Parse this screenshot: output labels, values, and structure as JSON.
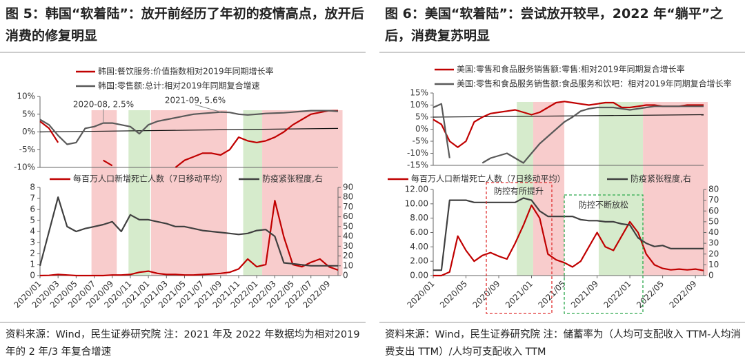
{
  "figures": [
    {
      "title": "图 5：韩国“软着陆”：放开前经历了年初的疫情高点，放开后消费的修复明显",
      "source": "资料来源：Wind，民生证券研究院 注：2021 年及 2022 年数据均为相对2019 年的 2 年/3 年复合增速"
    },
    {
      "title": "图 6：美国“软着陆”：尝试放开较早，2022 年“躺平”之后，消费复苏明显",
      "source": "资料来源：Wind，民生证券研究院 注：储蓄率为（人均可支配收入 TTM-人均消费支出 TTM）/人均可支配收入 TTM"
    }
  ],
  "chart_data": [
    {
      "type": "line",
      "ylim": [
        -10,
        10
      ],
      "yticks": [
        {
          "value": -10,
          "label": "-10%"
        },
        {
          "value": -5,
          "label": "-5%"
        },
        {
          "value": 0,
          "label": "0%"
        },
        {
          "value": 5,
          "label": "5%"
        },
        {
          "value": 10,
          "label": "10%"
        }
      ],
      "annotations": [
        {
          "text": "2020-08, 2.5%"
        },
        {
          "text": "2021-09, 5.6%"
        }
      ],
      "series": [
        {
          "name": "韩国:餐饮服务:价值指数相对2019年同期增长率",
          "color": "#c00000",
          "values": [
            3,
            1,
            -3,
            null,
            null,
            null,
            null,
            -8,
            -9.5,
            null,
            null,
            null,
            null,
            null,
            null,
            -10,
            -8,
            -7,
            -6,
            -6,
            -6.5,
            -5,
            -1.5,
            -2.5,
            -3,
            -2.5,
            -1.5,
            0,
            2,
            3.5,
            5,
            5.5,
            6,
            6
          ]
        },
        {
          "name": "韩国:零售额:总计:相对2019年同期复合增速",
          "color": "#595959",
          "values": [
            3.5,
            2,
            -1,
            -3.5,
            -3,
            1,
            1.5,
            2.5,
            2.5,
            2,
            1.5,
            -0.5,
            2,
            3,
            3.5,
            4,
            4.5,
            5,
            5.2,
            5.4,
            5.6,
            5.5,
            5,
            4.8,
            5,
            5.2,
            5.3,
            5.4,
            5.6,
            5.8,
            6,
            6,
            6,
            5.8
          ]
        }
      ]
    },
    {
      "type": "line",
      "ylim": [
        0,
        8
      ],
      "yticks": [
        0,
        1,
        2,
        3,
        4,
        5,
        6,
        7,
        8
      ],
      "y2lim": [
        0,
        90
      ],
      "y2ticks": [
        0,
        10,
        20,
        30,
        40,
        50,
        60,
        70,
        80,
        90
      ],
      "categories": [
        "2020/01",
        null,
        "2020/03",
        null,
        "2020/05",
        null,
        "2020/07",
        null,
        "2020/09",
        null,
        "2020/11",
        null,
        "2021/01",
        null,
        "2021/03",
        null,
        "2021/05",
        null,
        "2021/07",
        null,
        "2021/09",
        null,
        "2021/11",
        null,
        "2022/01",
        null,
        "2022/03",
        null,
        "2022/05",
        null,
        "2022/07",
        null,
        "2022/09",
        null
      ],
      "series": [
        {
          "name": "每百万人口新增死亡人数（7日移动平均）",
          "color": "#c00000",
          "values": [
            0,
            0.02,
            0.1,
            0.05,
            0,
            0,
            0,
            0,
            0.05,
            0.05,
            0.1,
            0.3,
            0.4,
            0.2,
            0.1,
            0.1,
            0.05,
            0.05,
            0.1,
            0.15,
            0.2,
            0.3,
            0.6,
            1.5,
            0.8,
            1,
            6.8,
            3.5,
            1,
            0.8,
            1.2,
            1.5,
            0.8,
            0.5
          ]
        },
        {
          "name": "防疫紧张程度,右",
          "color": "#404040",
          "axis": "y2",
          "values": [
            10,
            45,
            80,
            50,
            45,
            48,
            50,
            52,
            55,
            45,
            62,
            57,
            57,
            55,
            53,
            50,
            50,
            48,
            46,
            45,
            44,
            43,
            42,
            43,
            46,
            47,
            40,
            13,
            12,
            11,
            10,
            10,
            10,
            10
          ]
        }
      ]
    },
    {
      "type": "line",
      "ylim": [
        -15,
        15
      ],
      "yticks": [
        {
          "value": -15,
          "label": "-15%"
        },
        {
          "value": -10,
          "label": "-10%"
        },
        {
          "value": -5,
          "label": "-5%"
        },
        {
          "value": 0,
          "label": "0%"
        },
        {
          "value": 5,
          "label": "5%"
        },
        {
          "value": 10,
          "label": "10%"
        },
        {
          "value": 15,
          "label": "15%"
        }
      ],
      "series": [
        {
          "name": "美国:零售和食品服务销售额:零售:相对2019年同期复合增长率",
          "color": "#c00000",
          "values": [
            4,
            2,
            -5,
            -7.5,
            -5,
            3,
            5,
            6.5,
            7,
            7.5,
            8,
            7,
            6,
            7,
            9,
            11,
            11.5,
            11,
            10.5,
            10,
            10.5,
            11,
            11,
            9,
            9,
            9.5,
            10,
            10,
            9.5,
            9.5,
            9.5,
            10,
            10,
            10
          ]
        },
        {
          "name": "美国:零售和食品服务销售额:食品服务和饮吧：相对2019年同期复合增长率",
          "color": "#595959",
          "values": [
            9,
            10.5,
            -12,
            null,
            null,
            null,
            -14,
            -12,
            -11,
            -10,
            -12,
            -14,
            -10,
            -6,
            -3,
            0,
            3,
            5,
            7.5,
            8.5,
            9,
            9,
            9,
            8.5,
            8,
            8.5,
            9,
            9.5,
            9.5,
            9.5,
            9.5,
            9.5,
            9.5,
            9.5
          ]
        }
      ]
    },
    {
      "type": "line",
      "ylim": [
        0,
        12
      ],
      "yticks": [
        {
          "value": 0,
          "label": "0.00"
        },
        {
          "value": 2,
          "label": "2.00"
        },
        {
          "value": 4,
          "label": "4.00"
        },
        {
          "value": 6,
          "label": "6.00"
        },
        {
          "value": 8,
          "label": "8.00"
        },
        {
          "value": 10,
          "label": "10.00"
        },
        {
          "value": 12,
          "label": "12.00"
        }
      ],
      "y2lim": [
        0,
        80
      ],
      "y2ticks": [
        0,
        10,
        20,
        30,
        40,
        50,
        60,
        70,
        80
      ],
      "categories": [
        "2020/01",
        null,
        null,
        null,
        "2020/05",
        null,
        null,
        null,
        "2020/09",
        null,
        null,
        null,
        "2021/01",
        null,
        null,
        null,
        "2021/05",
        null,
        null,
        null,
        "2021/09",
        null,
        null,
        null,
        "2022/01",
        null,
        null,
        null,
        "2022/05",
        null,
        null,
        null,
        "2022/09",
        null
      ],
      "annotations": [
        {
          "text": "防控有所提升",
          "color": "#e03030"
        },
        {
          "text": "防控不断放松",
          "color": "#2aa84a"
        }
      ],
      "series": [
        {
          "name": "每百万人口新增死亡人数（7日移动平均）",
          "color": "#c00000",
          "values": [
            0,
            0,
            0.5,
            5.5,
            3.5,
            2,
            2.8,
            3.2,
            2.7,
            2.3,
            4.5,
            7,
            9.8,
            8,
            3,
            2.2,
            1.8,
            1.2,
            2,
            4,
            6,
            4,
            3.5,
            5.5,
            7.5,
            6,
            3,
            1.5,
            1,
            0.8,
            0.9,
            0.8,
            0.9,
            0.7
          ]
        },
        {
          "name": "防疫紧张程度,右",
          "color": "#404040",
          "axis": "y2",
          "values": [
            5,
            5,
            70,
            70,
            70,
            68,
            68,
            68,
            68,
            68,
            68,
            72,
            70,
            60,
            55,
            55,
            55,
            55,
            52,
            51,
            51,
            50,
            50,
            48,
            47,
            35,
            30,
            27,
            28,
            25,
            25,
            25,
            25,
            25
          ]
        }
      ]
    }
  ]
}
